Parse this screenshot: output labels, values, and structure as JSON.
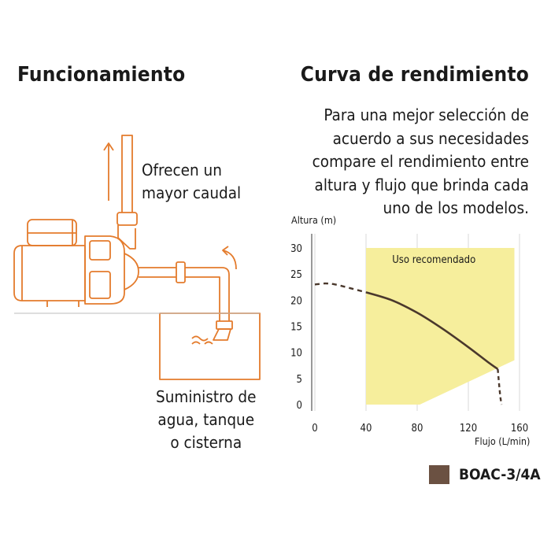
{
  "left": {
    "heading": "Funcionamiento",
    "flow_label": [
      "Ofrecen un",
      "mayor caudal"
    ],
    "supply_label": [
      "Suministro de",
      "agua, tanque",
      "o cisterna"
    ]
  },
  "right": {
    "heading": "Curva de rendimiento",
    "description": [
      "Para una mejor selección de",
      "acuerdo a sus necesidades",
      "compare el rendimiento entre",
      "altura y flujo que brinda cada",
      "uno de los modelos."
    ]
  },
  "colors": {
    "outline": "#e47b2c",
    "recommended_zone": "#f6ee9c",
    "curve": "#4a382c",
    "legend_swatch": "#6b5142"
  },
  "chart_data": {
    "type": "line",
    "xlabel": "Flujo (L/min)",
    "ylabel": "Altura (m)",
    "xlim": [
      0,
      160
    ],
    "ylim": [
      0,
      30
    ],
    "xticks": [
      0,
      40,
      80,
      120,
      160
    ],
    "yticks": [
      0,
      5,
      10,
      15,
      20,
      25,
      30
    ],
    "grid": "vertical",
    "zone": {
      "label": "Uso recomendado",
      "polygon": [
        [
          40,
          30
        ],
        [
          156,
          30
        ],
        [
          156,
          8.5
        ],
        [
          82,
          0
        ],
        [
          40,
          0
        ]
      ]
    },
    "series": [
      {
        "name": "BOAC-3/4A",
        "solid": [
          [
            40,
            21.5
          ],
          [
            60,
            20
          ],
          [
            80,
            17.6
          ],
          [
            100,
            14.5
          ],
          [
            120,
            11
          ],
          [
            135,
            8.2
          ],
          [
            143,
            6.8
          ]
        ],
        "dashed_start": [
          [
            0,
            23
          ],
          [
            8,
            23.2
          ],
          [
            16,
            23
          ],
          [
            26,
            22.4
          ],
          [
            40,
            21.5
          ]
        ],
        "dashed_end": [
          [
            143,
            6.8
          ],
          [
            144,
            4
          ],
          [
            145,
            1.5
          ],
          [
            146,
            0
          ]
        ]
      }
    ]
  }
}
